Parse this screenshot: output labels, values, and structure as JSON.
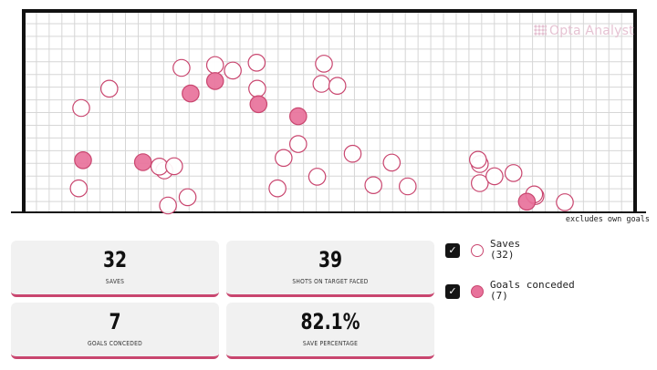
{
  "watermark": "Opta Analyst",
  "note": "excludes own goals",
  "stats": [
    {
      "value": "32",
      "label": "SAVES"
    },
    {
      "value": "39",
      "label": "SHOTS ON TARGET FACED"
    },
    {
      "value": "7",
      "label": "GOALS CONCEDED"
    },
    {
      "value": "82.1%",
      "label": "SAVE PERCENTAGE"
    }
  ],
  "legend": [
    {
      "label": "Saves",
      "count": "(32)",
      "fill": "#ffffff",
      "stroke": "#c9466f",
      "checked": true
    },
    {
      "label": "Goals conceded",
      "count": "(7)",
      "fill": "#e8729b",
      "stroke": "#c9466f",
      "checked": true
    }
  ],
  "colors": {
    "save_fill": "#ffffff",
    "goal_fill": "#e8729b",
    "outline": "#c9466f",
    "frame": "#111111",
    "grid": "#d6d6d6"
  },
  "chart_data": {
    "type": "scatter",
    "title": "",
    "xlabel": "",
    "ylabel": "",
    "xlim": [
      0,
      100
    ],
    "ylim": [
      0,
      100
    ],
    "grid": true,
    "series": [
      {
        "name": "Saves",
        "points": [
          [
            9.4,
            51.8
          ],
          [
            14.0,
            61.4
          ],
          [
            25.8,
            71.7
          ],
          [
            31.3,
            73.1
          ],
          [
            34.2,
            70.4
          ],
          [
            38.2,
            61.4
          ],
          [
            38.1,
            74.3
          ],
          [
            23.0,
            20.8
          ],
          [
            22.2,
            22.7
          ],
          [
            24.6,
            22.9
          ],
          [
            26.8,
            7.5
          ],
          [
            9.0,
            11.9
          ],
          [
            23.6,
            3.4
          ],
          [
            49.1,
            73.8
          ],
          [
            48.7,
            63.8
          ],
          [
            51.3,
            62.8
          ],
          [
            44.9,
            33.9
          ],
          [
            42.5,
            27.0
          ],
          [
            48.0,
            17.7
          ],
          [
            41.5,
            11.9
          ],
          [
            53.8,
            29.1
          ],
          [
            60.2,
            24.7
          ],
          [
            57.2,
            13.5
          ],
          [
            62.8,
            12.9
          ],
          [
            74.6,
            14.5
          ],
          [
            74.6,
            24.0
          ],
          [
            74.3,
            26.1
          ],
          [
            77.0,
            17.9
          ],
          [
            80.1,
            19.5
          ],
          [
            83.7,
            8.1
          ],
          [
            83.5,
            8.9
          ],
          [
            88.5,
            5.0
          ]
        ]
      },
      {
        "name": "Goals conceded",
        "points": [
          [
            9.7,
            25.9
          ],
          [
            19.5,
            24.9
          ],
          [
            27.3,
            59.0
          ],
          [
            31.3,
            65.2
          ],
          [
            38.4,
            53.7
          ],
          [
            44.9,
            47.7
          ],
          [
            82.3,
            5.3
          ]
        ]
      }
    ]
  }
}
